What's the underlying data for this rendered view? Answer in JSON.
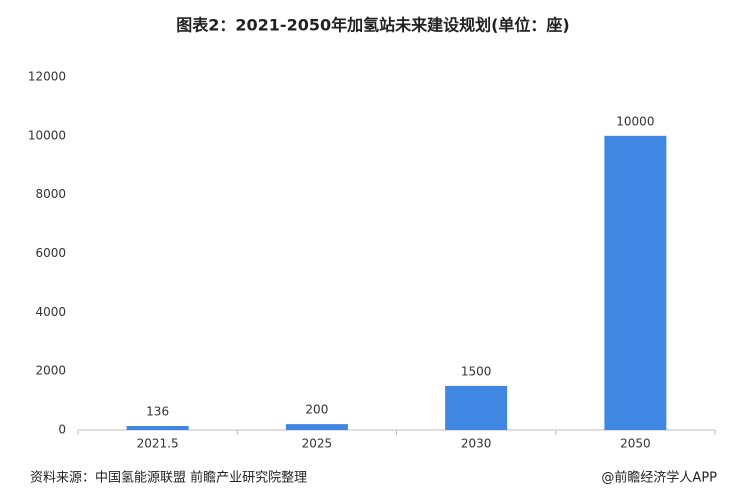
{
  "chart_data": {
    "type": "bar",
    "title": "图表2：2021-2050年加氢站未来建设规划(单位：座)",
    "categories": [
      "2021.5",
      "2025",
      "2030",
      "2050"
    ],
    "values": [
      136,
      200,
      1500,
      10000
    ],
    "color": "#3f87e3",
    "ylim": [
      0,
      12000
    ],
    "yticks": [
      0,
      2000,
      4000,
      6000,
      8000,
      10000,
      12000
    ],
    "grid": false,
    "source": "资料来源：中国氢能源联盟 前瞻产业研究院整理",
    "credit": "@前瞻经济学人APP"
  }
}
